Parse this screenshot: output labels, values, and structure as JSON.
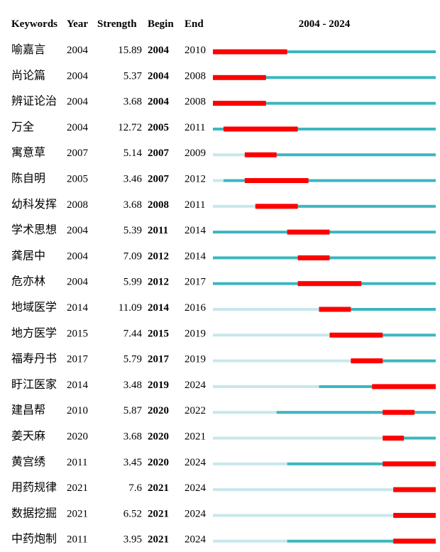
{
  "chart_data": {
    "type": "table",
    "title": "",
    "columns": [
      "Keywords",
      "Year",
      "Strength",
      "Begin",
      "End"
    ],
    "timeline_label": "2004 - 2024",
    "timeline_start": 2004,
    "timeline_end": 2024,
    "colors": {
      "burst": "#ff0000",
      "active": "#3bb6bf",
      "inactive": "#c8e8eb"
    },
    "rows": [
      {
        "keyword": "喻嘉言",
        "year": 2004,
        "strength": "15.89",
        "begin": 2004,
        "end": 2010
      },
      {
        "keyword": "尚论篇",
        "year": 2004,
        "strength": "5.37",
        "begin": 2004,
        "end": 2008
      },
      {
        "keyword": "辨证论治",
        "year": 2004,
        "strength": "3.68",
        "begin": 2004,
        "end": 2008
      },
      {
        "keyword": "万全",
        "year": 2004,
        "strength": "12.72",
        "begin": 2005,
        "end": 2011
      },
      {
        "keyword": "寓意草",
        "year": 2007,
        "strength": "5.14",
        "begin": 2007,
        "end": 2009
      },
      {
        "keyword": "陈自明",
        "year": 2005,
        "strength": "3.46",
        "begin": 2007,
        "end": 2012
      },
      {
        "keyword": "幼科发挥",
        "year": 2008,
        "strength": "3.68",
        "begin": 2008,
        "end": 2011
      },
      {
        "keyword": "学术思想",
        "year": 2004,
        "strength": "5.39",
        "begin": 2011,
        "end": 2014
      },
      {
        "keyword": "龚居中",
        "year": 2004,
        "strength": "7.09",
        "begin": 2012,
        "end": 2014
      },
      {
        "keyword": "危亦林",
        "year": 2004,
        "strength": "5.99",
        "begin": 2012,
        "end": 2017
      },
      {
        "keyword": "地域医学",
        "year": 2014,
        "strength": "11.09",
        "begin": 2014,
        "end": 2016
      },
      {
        "keyword": "地方医学",
        "year": 2015,
        "strength": "7.44",
        "begin": 2015,
        "end": 2019
      },
      {
        "keyword": "福寿丹书",
        "year": 2017,
        "strength": "5.79",
        "begin": 2017,
        "end": 2019
      },
      {
        "keyword": "盱江医家",
        "year": 2014,
        "strength": "3.48",
        "begin": 2019,
        "end": 2024
      },
      {
        "keyword": "建昌帮",
        "year": 2010,
        "strength": "5.87",
        "begin": 2020,
        "end": 2022
      },
      {
        "keyword": "姜天麻",
        "year": 2020,
        "strength": "3.68",
        "begin": 2020,
        "end": 2021
      },
      {
        "keyword": "黄宫绣",
        "year": 2011,
        "strength": "3.45",
        "begin": 2020,
        "end": 2024
      },
      {
        "keyword": "用药规律",
        "year": 2021,
        "strength": "7.6",
        "begin": 2021,
        "end": 2024
      },
      {
        "keyword": "数据挖掘",
        "year": 2021,
        "strength": "6.52",
        "begin": 2021,
        "end": 2024
      },
      {
        "keyword": "中药炮制",
        "year": 2011,
        "strength": "3.95",
        "begin": 2021,
        "end": 2024
      }
    ]
  }
}
